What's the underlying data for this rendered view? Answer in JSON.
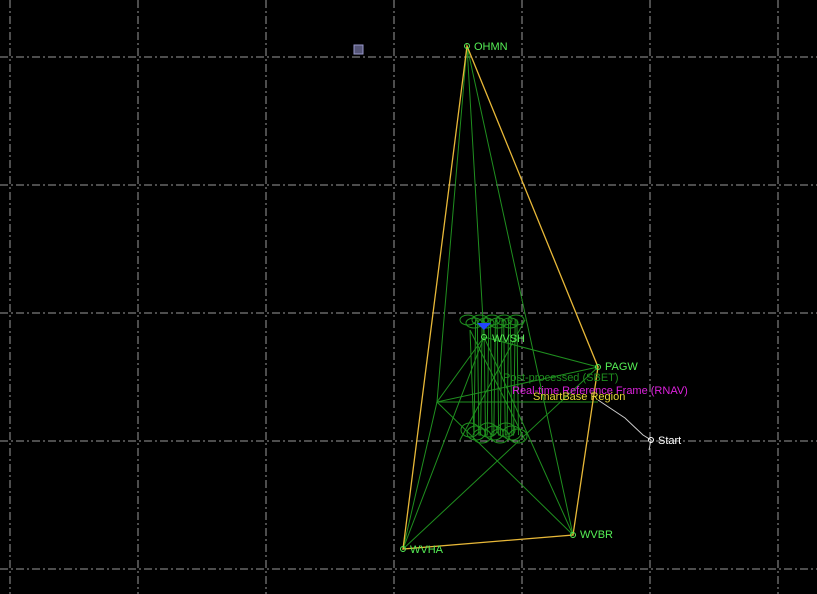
{
  "nodes": [
    {
      "label": "OHMN"
    },
    {
      "label": "WVSH"
    },
    {
      "label": "PAGW"
    },
    {
      "label": "WVBR"
    },
    {
      "label": "WVHA"
    },
    {
      "label": "Start"
    }
  ],
  "layers": [
    {
      "label": "Post-processed (SBET)"
    },
    {
      "label": "Real-time Reference Frame (RNAV)"
    },
    {
      "label": "SmartBase Region"
    }
  ]
}
